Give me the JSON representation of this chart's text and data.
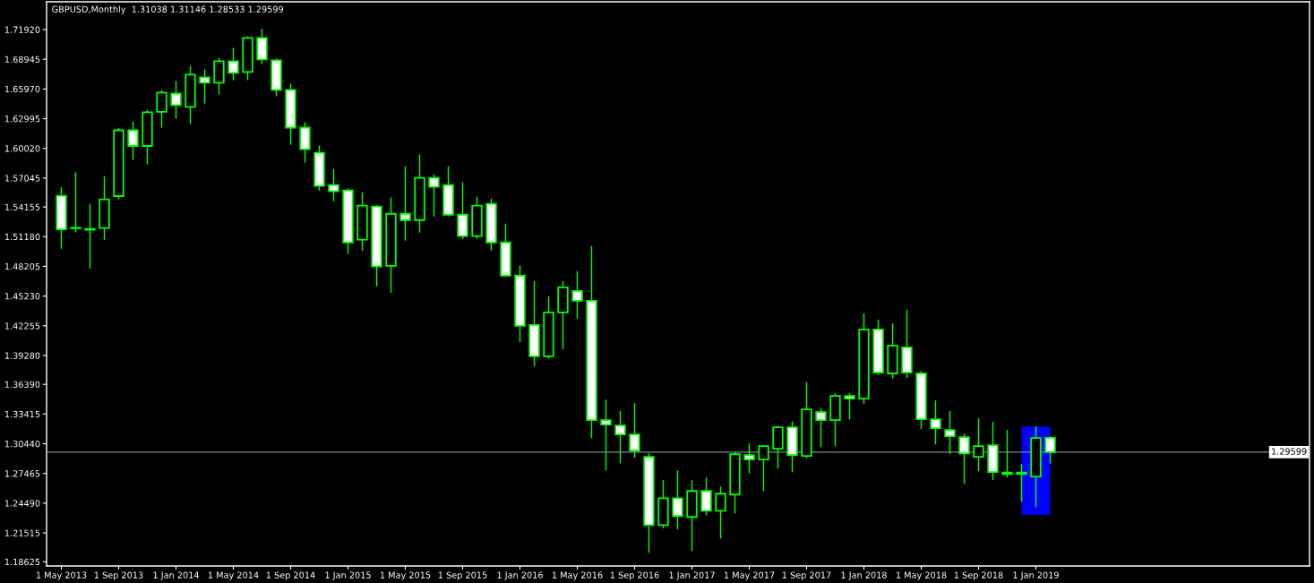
{
  "chart_data": {
    "type": "candlestick",
    "title": "GBPUSD,Monthly  1.31038 1.31146 1.28533 1.29599",
    "color": "#00ff00",
    "categories": [
      "1 May 2013",
      null,
      null,
      null,
      "1 Sep 2013",
      null,
      null,
      null,
      "1 Jan 2014",
      null,
      null,
      null,
      "1 May 2014",
      null,
      null,
      null,
      "1 Sep 2014",
      null,
      null,
      null,
      "1 Jan 2015",
      null,
      null,
      null,
      "1 May 2015",
      null,
      null,
      null,
      "1 Sep 2015",
      null,
      null,
      null,
      "1 Jan 2016",
      null,
      null,
      null,
      "1 May 2016",
      null,
      null,
      null,
      "1 Sep 2016",
      null,
      null,
      null,
      "1 Jan 2017",
      null,
      null,
      null,
      "1 May 2017",
      null,
      null,
      null,
      "1 Sep 2017",
      null,
      null,
      null,
      "1 Jan 2018",
      null,
      null,
      null,
      "1 May 2018",
      null,
      null,
      null,
      "1 Sep 2018",
      null,
      null,
      null,
      "1 Jan 2019",
      null
    ],
    "ohlc": [
      [
        1.5527,
        1.5608,
        1.5002,
        1.5191
      ],
      [
        1.5202,
        1.5757,
        1.5168,
        1.5207
      ],
      [
        1.5187,
        1.544,
        1.4805,
        1.5196
      ],
      [
        1.5204,
        1.5718,
        1.5092,
        1.5491
      ],
      [
        1.5524,
        1.6201,
        1.5497,
        1.6183
      ],
      [
        1.6183,
        1.6267,
        1.5892,
        1.6026
      ],
      [
        1.6026,
        1.6383,
        1.5847,
        1.6363
      ],
      [
        1.6368,
        1.6581,
        1.6215,
        1.656
      ],
      [
        1.6551,
        1.6671,
        1.6305,
        1.6435
      ],
      [
        1.6417,
        1.6824,
        1.6251,
        1.674
      ],
      [
        1.6713,
        1.6788,
        1.6458,
        1.6659
      ],
      [
        1.6659,
        1.6904,
        1.6548,
        1.6875
      ],
      [
        1.6875,
        1.7003,
        1.6689,
        1.6758
      ],
      [
        1.6767,
        1.712,
        1.6692,
        1.7108
      ],
      [
        1.7108,
        1.7192,
        1.6853,
        1.6893
      ],
      [
        1.6884,
        1.6896,
        1.653,
        1.6587
      ],
      [
        1.6587,
        1.6644,
        1.6045,
        1.621
      ],
      [
        1.621,
        1.6258,
        1.5865,
        1.5994
      ],
      [
        1.5958,
        1.6024,
        1.5586,
        1.5626
      ],
      [
        1.5635,
        1.579,
        1.5479,
        1.5572
      ],
      [
        1.5581,
        1.5595,
        1.4949,
        1.506
      ],
      [
        1.5087,
        1.5557,
        1.4984,
        1.5428
      ],
      [
        1.5419,
        1.5428,
        1.4625,
        1.482
      ],
      [
        1.4826,
        1.5503,
        1.4562,
        1.5347
      ],
      [
        1.5347,
        1.5817,
        1.5084,
        1.5284
      ],
      [
        1.5284,
        1.5934,
        1.5164,
        1.5707
      ],
      [
        1.5707,
        1.5736,
        1.5326,
        1.5617
      ],
      [
        1.5635,
        1.5817,
        1.5326,
        1.5338
      ],
      [
        1.5338,
        1.5656,
        1.5101,
        1.5123
      ],
      [
        1.5123,
        1.5512,
        1.5101,
        1.5428
      ],
      [
        1.5446,
        1.5494,
        1.4984,
        1.506
      ],
      [
        1.506,
        1.5242,
        1.4722,
        1.4728
      ],
      [
        1.4728,
        1.482,
        1.4068,
        1.4224
      ],
      [
        1.4233,
        1.4667,
        1.3825,
        1.3919
      ],
      [
        1.3919,
        1.4515,
        1.3901,
        1.4359
      ],
      [
        1.4359,
        1.4667,
        1.3996,
        1.4611
      ],
      [
        1.4575,
        1.4766,
        1.4302,
        1.4476
      ],
      [
        1.4476,
        1.5018,
        1.3107,
        1.3281
      ],
      [
        1.3281,
        1.3481,
        1.2783,
        1.3236
      ],
      [
        1.3227,
        1.3365,
        1.2855,
        1.3137
      ],
      [
        1.3137,
        1.3445,
        1.2909,
        1.2975
      ],
      [
        1.2912,
        1.2942,
        1.1957,
        1.223
      ],
      [
        1.223,
        1.2673,
        1.2203,
        1.2499
      ],
      [
        1.2499,
        1.2772,
        1.2191,
        1.232
      ],
      [
        1.2311,
        1.2673,
        1.1975,
        1.2571
      ],
      [
        1.2571,
        1.27,
        1.2334,
        1.2373
      ],
      [
        1.2373,
        1.261,
        1.21,
        1.2544
      ],
      [
        1.2535,
        1.2957,
        1.2352,
        1.2939
      ],
      [
        1.293,
        1.3041,
        1.2756,
        1.2886
      ],
      [
        1.2886,
        1.302,
        1.2576,
        1.302
      ],
      [
        1.2993,
        1.3218,
        1.2801,
        1.3209
      ],
      [
        1.3209,
        1.3263,
        1.2765,
        1.293
      ],
      [
        1.2922,
        1.3652,
        1.2904,
        1.3389
      ],
      [
        1.3362,
        1.3398,
        1.3017,
        1.3281
      ],
      [
        1.3281,
        1.3544,
        1.3026,
        1.3523
      ],
      [
        1.3523,
        1.3544,
        1.3295,
        1.3496
      ],
      [
        1.3496,
        1.4344,
        1.3448,
        1.4188
      ],
      [
        1.4188,
        1.4281,
        1.3739,
        1.3757
      ],
      [
        1.3748,
        1.4245,
        1.3703,
        1.4027
      ],
      [
        1.4009,
        1.438,
        1.3709,
        1.3757
      ],
      [
        1.3748,
        1.3766,
        1.3197,
        1.329
      ],
      [
        1.329,
        1.3472,
        1.3044,
        1.32
      ],
      [
        1.3182,
        1.3365,
        1.2948,
        1.3119
      ],
      [
        1.311,
        1.314,
        1.2648,
        1.2948
      ],
      [
        1.2913,
        1.3293,
        1.2774,
        1.302
      ],
      [
        1.3029,
        1.3257,
        1.2688,
        1.276
      ],
      [
        1.2756,
        1.3176,
        1.2711,
        1.2741
      ],
      [
        1.2756,
        1.2834,
        1.2469,
        1.2741
      ],
      [
        1.2715,
        1.3212,
        1.2415,
        1.3101
      ],
      [
        1.31038,
        1.31146,
        1.28533,
        1.29599
      ]
    ],
    "series": [
      {
        "type": "bar",
        "color": "#0000ff",
        "values": [
          null,
          null,
          null,
          null,
          null,
          null,
          null,
          null,
          null,
          null,
          null,
          null,
          null,
          null,
          null,
          null,
          null,
          null,
          null,
          null,
          null,
          null,
          null,
          null,
          null,
          null,
          null,
          null,
          null,
          null,
          null,
          null,
          null,
          null,
          null,
          null,
          null,
          null,
          null,
          null,
          null,
          null,
          null,
          null,
          null,
          null,
          null,
          null,
          null,
          null,
          null,
          null,
          null,
          null,
          null,
          null,
          null,
          null,
          null,
          null,
          null,
          null,
          null,
          null,
          null,
          null,
          null,
          null,
          0.088,
          null
        ],
        "base": [
          null,
          null,
          null,
          null,
          null,
          null,
          null,
          null,
          null,
          null,
          null,
          null,
          null,
          null,
          null,
          null,
          null,
          null,
          null,
          null,
          null,
          null,
          null,
          null,
          null,
          null,
          null,
          null,
          null,
          null,
          null,
          null,
          null,
          null,
          null,
          null,
          null,
          null,
          null,
          null,
          null,
          null,
          null,
          null,
          null,
          null,
          null,
          null,
          null,
          null,
          null,
          null,
          null,
          null,
          null,
          null,
          null,
          null,
          null,
          null,
          null,
          null,
          null,
          null,
          null,
          null,
          null,
          null,
          1.2334,
          null
        ]
      }
    ],
    "ylim": [
      1.182,
      1.747
    ],
    "yticks": [
      {
        "value": 1.7192,
        "label": "1.71920"
      },
      1.68945,
      {
        "value": 1.6597,
        "label": "1.65970"
      },
      1.62995,
      {
        "value": 1.6002,
        "label": "1.60020"
      },
      1.57045,
      1.54155,
      {
        "value": 1.5118,
        "label": "1.51180"
      },
      1.48205,
      {
        "value": 1.4523,
        "label": "1.45230"
      },
      1.42255,
      {
        "value": 1.3928,
        "label": "1.39280"
      },
      {
        "value": 1.3639,
        "label": "1.36390"
      },
      1.33415,
      {
        "value": 1.3044,
        "label": "1.30440"
      },
      1.27465,
      {
        "value": 1.2449,
        "label": "1.24490"
      },
      1.21515,
      1.18625
    ],
    "ref_lines": [
      {
        "axis": "y",
        "value": 1.29599,
        "label": "1.29599",
        "color": "#778899"
      }
    ]
  }
}
